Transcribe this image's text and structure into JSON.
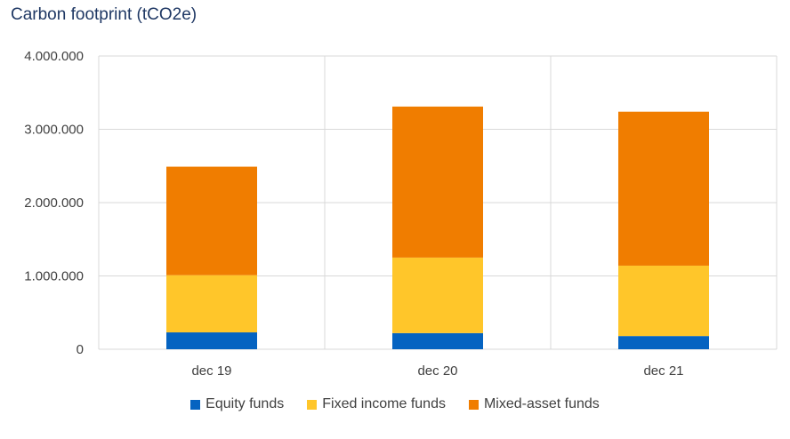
{
  "chart_data": {
    "type": "bar",
    "stacked": true,
    "title": "Carbon footprint (tCO2e)",
    "categories": [
      "dec 19",
      "dec 20",
      "dec 21"
    ],
    "series": [
      {
        "name": "Equity funds",
        "color": "#0563c1",
        "values": [
          230000,
          220000,
          180000
        ]
      },
      {
        "name": "Fixed income funds",
        "color": "#ffc62a",
        "values": [
          780000,
          1030000,
          960000
        ]
      },
      {
        "name": "Mixed-asset funds",
        "color": "#f07d00",
        "values": [
          1480000,
          2060000,
          2100000
        ]
      }
    ],
    "ylim": [
      0,
      4000000
    ],
    "yticks": [
      "0",
      "1.000.000",
      "2.000.000",
      "3.000.000",
      "4.000.000"
    ],
    "grid": true,
    "legend_position": "bottom"
  }
}
